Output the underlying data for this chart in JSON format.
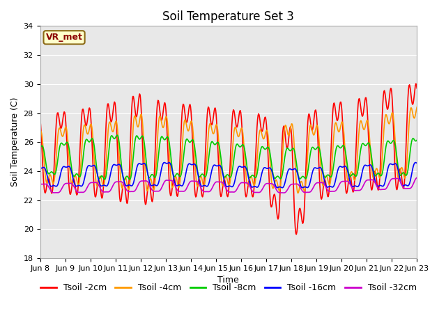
{
  "title": "Soil Temperature Set 3",
  "xlabel": "Time",
  "ylabel": "Soil Temperature (C)",
  "ylim": [
    18,
    34
  ],
  "yticks": [
    18,
    20,
    22,
    24,
    26,
    28,
    30,
    32,
    34
  ],
  "x_labels": [
    "Jun 8",
    "Jun 9",
    "Jun 10",
    "Jun 11",
    "Jun 12",
    "Jun 13",
    "Jun 14",
    "Jun 15",
    "Jun 16",
    "Jun 17",
    "Jun 18",
    "Jun 19",
    "Jun 20",
    "Jun 21",
    "Jun 22",
    "Jun 23"
  ],
  "annotation": "VR_met",
  "legend_labels": [
    "Tsoil -2cm",
    "Tsoil -4cm",
    "Tsoil -8cm",
    "Tsoil -16cm",
    "Tsoil -32cm"
  ],
  "line_colors": [
    "#ff0000",
    "#ff9900",
    "#00cc00",
    "#0000ff",
    "#cc00cc"
  ],
  "line_widths": [
    1.2,
    1.2,
    1.2,
    1.2,
    1.2
  ],
  "bg_color": "#e8e8e8",
  "fig_bg_color": "#ffffff",
  "title_fontsize": 12,
  "axis_fontsize": 9,
  "tick_fontsize": 8,
  "legend_fontsize": 9
}
